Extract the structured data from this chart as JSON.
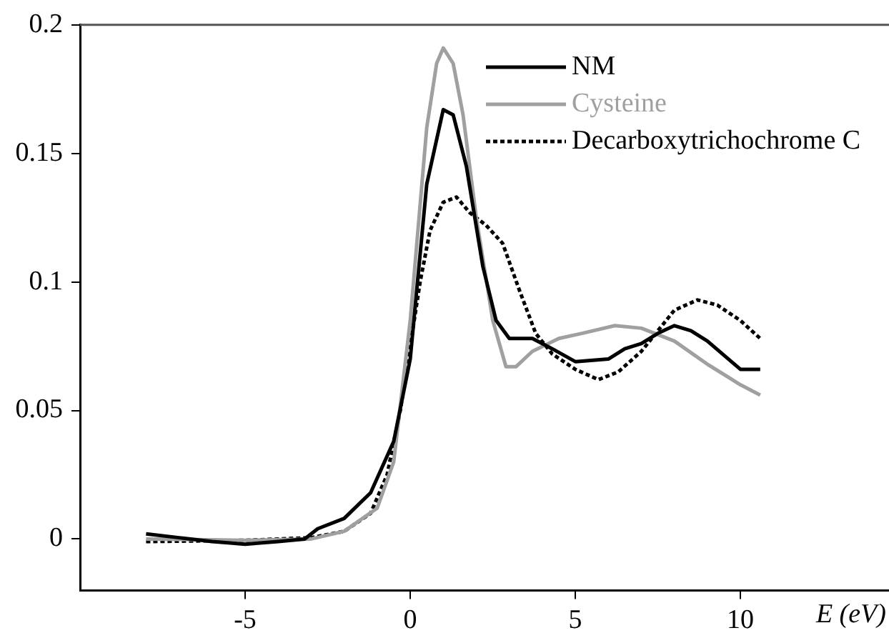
{
  "chart_data": {
    "type": "line",
    "xlabel": "E (eV)",
    "xlim": [
      -10,
      14.5
    ],
    "ylim": [
      -0.02,
      0.2
    ],
    "xticks": [
      -5,
      0,
      5,
      10
    ],
    "yticks": [
      0,
      0.05,
      0.1,
      0.15,
      0.2
    ],
    "grid": false,
    "legend": "top right",
    "marker": "none",
    "series": [
      {
        "name": "NM",
        "color": "#000000",
        "line_style": "solid",
        "x": [
          -8,
          -7,
          -6,
          -5,
          -4,
          -3.2,
          -2.8,
          -2,
          -1.2,
          -0.5,
          0,
          0.5,
          1,
          1.3,
          1.7,
          2.2,
          2.6,
          3,
          3.7,
          4.3,
          5,
          6,
          6.5,
          7,
          7.5,
          8,
          8.5,
          9,
          10,
          10.6
        ],
        "values": [
          0.002,
          0.0005,
          -0.001,
          -0.002,
          -0.001,
          0,
          0.004,
          0.008,
          0.018,
          0.038,
          0.07,
          0.138,
          0.167,
          0.165,
          0.145,
          0.106,
          0.085,
          0.078,
          0.078,
          0.074,
          0.069,
          0.07,
          0.074,
          0.076,
          0.08,
          0.083,
          0.081,
          0.077,
          0.066,
          0.066
        ]
      },
      {
        "name": "Cysteine",
        "color": "#a0a0a0",
        "line_style": "solid",
        "x": [
          -8,
          -5,
          -3,
          -2,
          -1,
          -0.5,
          0,
          0.5,
          0.8,
          1,
          1.3,
          1.6,
          2,
          2.5,
          2.9,
          3.2,
          3.7,
          4.5,
          5.2,
          6.2,
          7,
          8,
          9,
          10,
          10.6
        ],
        "values": [
          0,
          -0.0005,
          0,
          0.003,
          0.012,
          0.03,
          0.085,
          0.16,
          0.185,
          0.191,
          0.185,
          0.165,
          0.125,
          0.085,
          0.067,
          0.067,
          0.073,
          0.078,
          0.08,
          0.083,
          0.082,
          0.077,
          0.068,
          0.06,
          0.056
        ]
      },
      {
        "name": "Decarboxytrichochrome C",
        "color": "#000000",
        "line_style": "dotted",
        "x": [
          -8,
          -5,
          -3,
          -2,
          -1.2,
          -0.7,
          -0.3,
          0,
          0.3,
          0.6,
          1,
          1.4,
          1.8,
          2.3,
          2.8,
          3.3,
          3.8,
          4.3,
          5,
          5.7,
          6.3,
          7,
          7.5,
          8,
          8.7,
          9.3,
          10,
          10.6
        ],
        "values": [
          -0.001,
          -0.0005,
          0.0005,
          0.003,
          0.01,
          0.025,
          0.05,
          0.075,
          0.1,
          0.12,
          0.131,
          0.133,
          0.127,
          0.122,
          0.115,
          0.097,
          0.08,
          0.072,
          0.066,
          0.062,
          0.065,
          0.073,
          0.081,
          0.089,
          0.093,
          0.091,
          0.085,
          0.078
        ]
      }
    ]
  }
}
